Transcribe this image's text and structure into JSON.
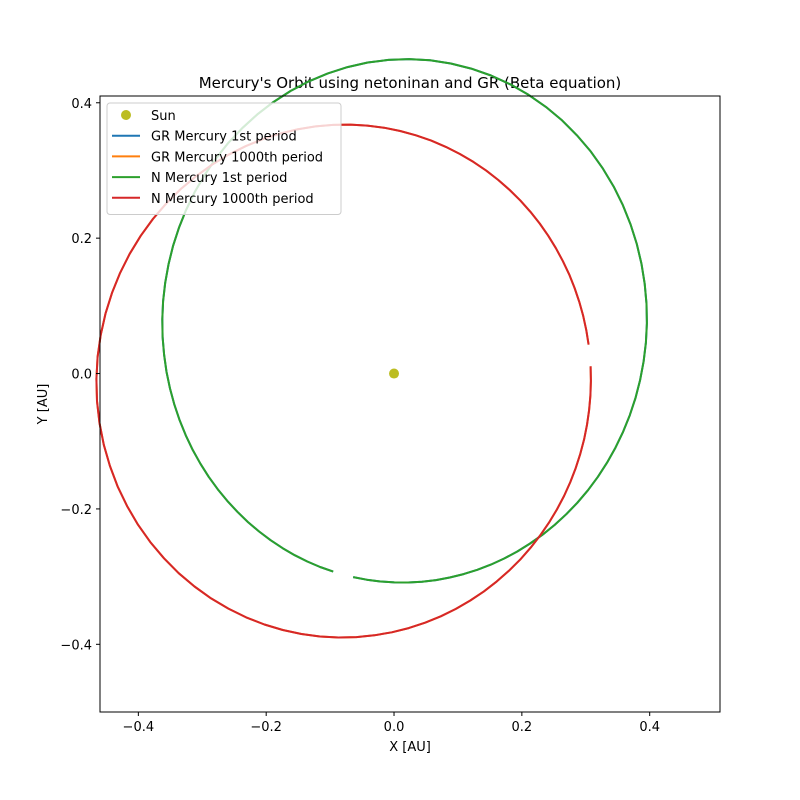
{
  "chart_data": {
    "type": "line",
    "title": "Mercury's Orbit using netoninan and GR (Beta equation)",
    "xlabel": "X [AU]",
    "ylabel": "Y [AU]",
    "xlim": [
      -0.46,
      0.51
    ],
    "ylim": [
      -0.5,
      0.41
    ],
    "xticks": [
      -0.4,
      -0.2,
      0.0,
      0.2,
      0.4
    ],
    "xtick_labels": [
      "−0.4",
      "−0.2",
      "0.0",
      "0.2",
      "0.4"
    ],
    "yticks": [
      -0.4,
      -0.2,
      0.0,
      0.2,
      0.4
    ],
    "ytick_labels": [
      "−0.4",
      "−0.2",
      "0.0",
      "0.2",
      "0.4"
    ],
    "grid": false,
    "legend": "top-left",
    "sun": {
      "name": "Sun",
      "x": 0.0,
      "y": 0.0,
      "color": "#bcbd22"
    },
    "series": [
      {
        "name": "GR Mercury 1st period",
        "color": "#1f77b4",
        "drawn": "hidden beneath N Mercury 1st period",
        "orbit": {
          "a": 0.387,
          "e": 0.2056,
          "omega_deg": 258,
          "start_deg": 0,
          "end_deg": 354
        }
      },
      {
        "name": "GR Mercury 1000th period",
        "color": "#ff7f0e",
        "drawn": "hidden beneath N Mercury 1000th period",
        "orbit": {
          "a": 0.387,
          "e": 0.2056,
          "omega_deg": 8,
          "start_deg": 0,
          "end_deg": 354
        }
      },
      {
        "name": "N Mercury 1st period",
        "color": "#2ca02c",
        "orbit": {
          "a": 0.387,
          "e": 0.2056,
          "omega_deg": 258,
          "start_deg": 0,
          "end_deg": 354
        }
      },
      {
        "name": "N Mercury 1000th period",
        "color": "#d62728",
        "orbit": {
          "a": 0.387,
          "e": 0.2056,
          "omega_deg": 8,
          "start_deg": 0,
          "end_deg": 354
        }
      }
    ]
  }
}
